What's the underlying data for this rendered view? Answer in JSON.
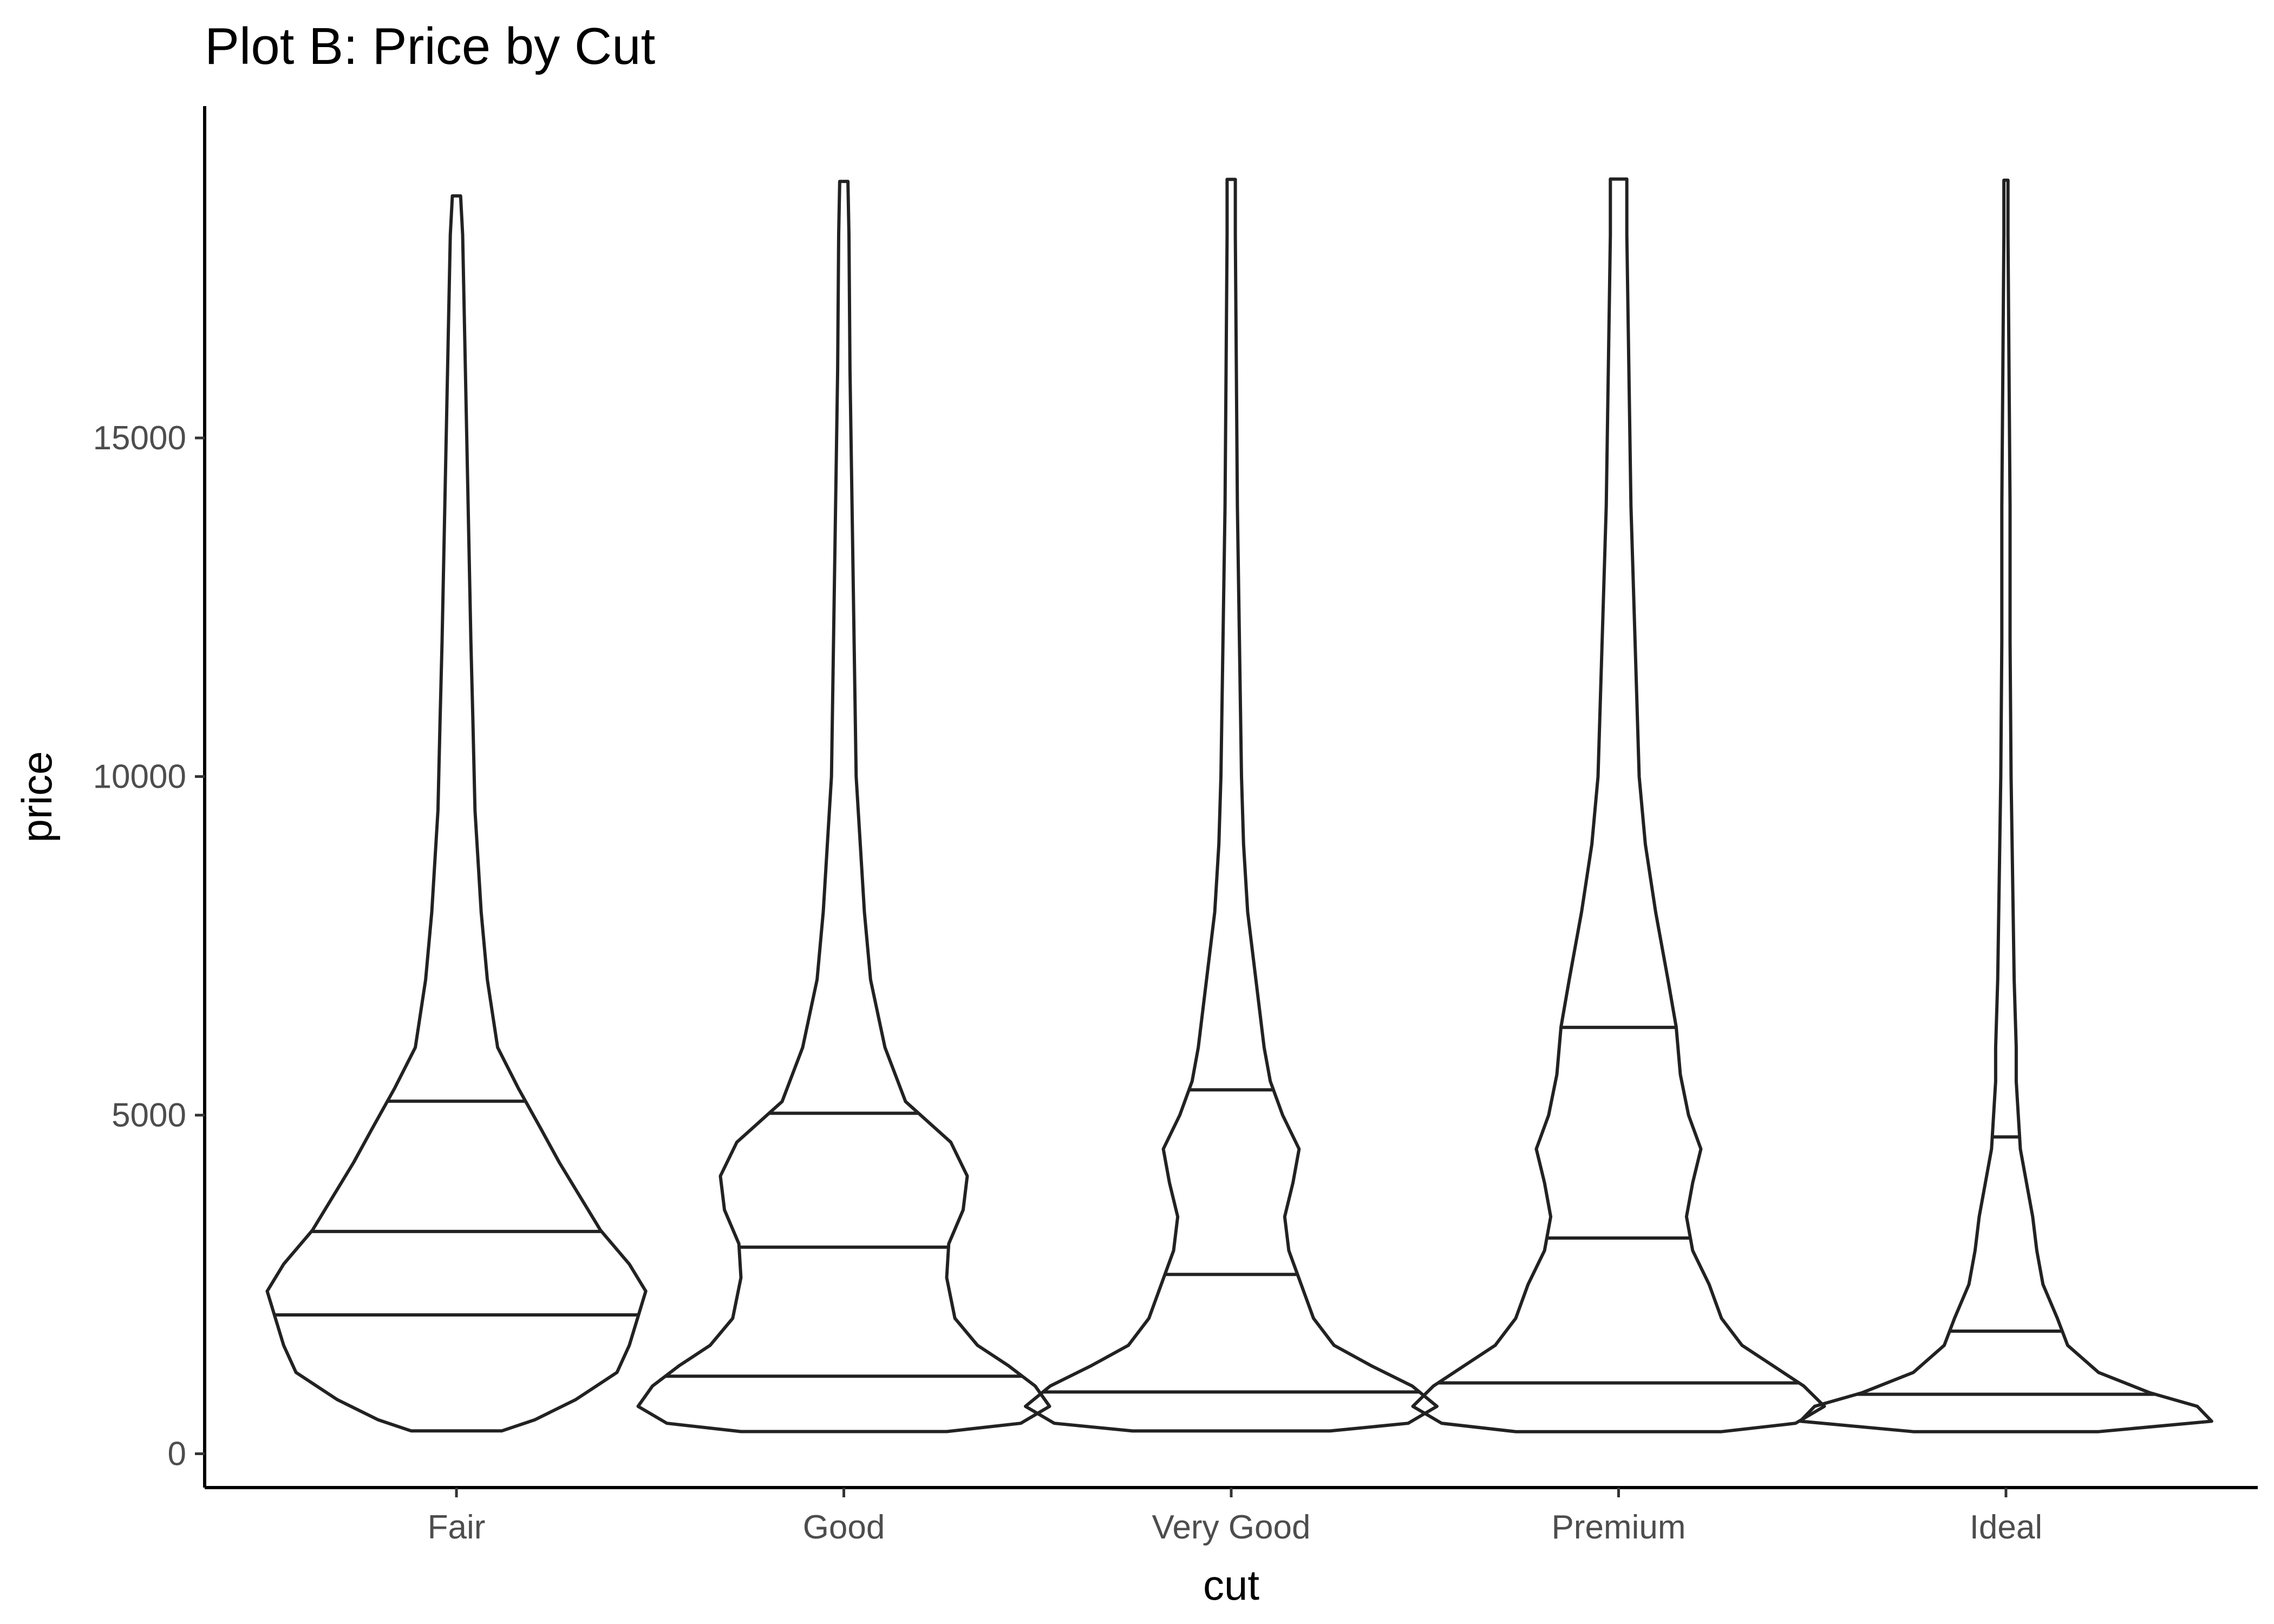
{
  "chart_data": {
    "type": "violin",
    "title": "Plot B: Price by Cut",
    "xlabel": "cut",
    "ylabel": "price",
    "ylim": [
      -500,
      19900
    ],
    "yticks": [
      0,
      5000,
      10000,
      15000
    ],
    "ytick_labels": [
      "0",
      "5000",
      "10000",
      "15000"
    ],
    "grid": false,
    "legend": "none",
    "categories": [
      "Fair",
      "Good",
      "Very Good",
      "Premium",
      "Ideal"
    ],
    "draw_quantiles": [
      0.25,
      0.5,
      0.75
    ],
    "series": [
      {
        "category": "Fair",
        "min": 337,
        "max": 18574,
        "quantiles": [
          2050,
          3282,
          5206
        ],
        "density": [
          [
            337,
            0.22
          ],
          [
            500,
            0.38
          ],
          [
            800,
            0.58
          ],
          [
            1200,
            0.78
          ],
          [
            1600,
            0.84
          ],
          [
            2000,
            0.88
          ],
          [
            2400,
            0.92
          ],
          [
            2800,
            0.84
          ],
          [
            3300,
            0.7
          ],
          [
            3800,
            0.6
          ],
          [
            4300,
            0.5
          ],
          [
            4800,
            0.41
          ],
          [
            5400,
            0.3
          ],
          [
            6000,
            0.2
          ],
          [
            7000,
            0.15
          ],
          [
            8000,
            0.12
          ],
          [
            9500,
            0.09
          ],
          [
            10800,
            0.08
          ],
          [
            12000,
            0.07
          ],
          [
            13500,
            0.06
          ],
          [
            15000,
            0.05
          ],
          [
            16500,
            0.04
          ],
          [
            18000,
            0.03
          ],
          [
            18574,
            0.02
          ]
        ]
      },
      {
        "category": "Good",
        "min": 327,
        "max": 18788,
        "quantiles": [
          1145,
          3050,
          5028
        ],
        "density": [
          [
            327,
            0.5
          ],
          [
            450,
            0.86
          ],
          [
            700,
            1.0
          ],
          [
            1000,
            0.93
          ],
          [
            1300,
            0.8
          ],
          [
            1600,
            0.65
          ],
          [
            2000,
            0.54
          ],
          [
            2600,
            0.5
          ],
          [
            3100,
            0.51
          ],
          [
            3600,
            0.58
          ],
          [
            4100,
            0.6
          ],
          [
            4600,
            0.52
          ],
          [
            5200,
            0.3
          ],
          [
            6000,
            0.2
          ],
          [
            7000,
            0.13
          ],
          [
            8000,
            0.1
          ],
          [
            9000,
            0.08
          ],
          [
            10000,
            0.06
          ],
          [
            12000,
            0.05
          ],
          [
            14000,
            0.04
          ],
          [
            16000,
            0.03
          ],
          [
            18000,
            0.025
          ],
          [
            18788,
            0.02
          ]
        ]
      },
      {
        "category": "Very Good",
        "min": 336,
        "max": 18818,
        "quantiles": [
          912,
          2648,
          5373
        ],
        "density": [
          [
            336,
            0.48
          ],
          [
            450,
            0.86
          ],
          [
            700,
            1.0
          ],
          [
            1000,
            0.88
          ],
          [
            1300,
            0.68
          ],
          [
            1600,
            0.5
          ],
          [
            2000,
            0.4
          ],
          [
            2500,
            0.34
          ],
          [
            3000,
            0.28
          ],
          [
            3500,
            0.26
          ],
          [
            4000,
            0.3
          ],
          [
            4500,
            0.33
          ],
          [
            5000,
            0.25
          ],
          [
            5500,
            0.19
          ],
          [
            6000,
            0.16
          ],
          [
            7000,
            0.12
          ],
          [
            8000,
            0.08
          ],
          [
            9000,
            0.06
          ],
          [
            10000,
            0.05
          ],
          [
            12000,
            0.04
          ],
          [
            14000,
            0.03
          ],
          [
            16000,
            0.025
          ],
          [
            18000,
            0.02
          ],
          [
            18818,
            0.02
          ]
        ]
      },
      {
        "category": "Premium",
        "min": 326,
        "max": 18823,
        "quantiles": [
          1046,
          3185,
          6296
        ],
        "density": [
          [
            326,
            0.5
          ],
          [
            450,
            0.86
          ],
          [
            700,
            1.0
          ],
          [
            1000,
            0.9
          ],
          [
            1300,
            0.75
          ],
          [
            1600,
            0.6
          ],
          [
            2000,
            0.5
          ],
          [
            2500,
            0.44
          ],
          [
            3000,
            0.36
          ],
          [
            3500,
            0.33
          ],
          [
            4000,
            0.36
          ],
          [
            4500,
            0.4
          ],
          [
            5000,
            0.34
          ],
          [
            5600,
            0.3
          ],
          [
            6300,
            0.28
          ],
          [
            7000,
            0.24
          ],
          [
            8000,
            0.18
          ],
          [
            9000,
            0.13
          ],
          [
            10000,
            0.1
          ],
          [
            12000,
            0.08
          ],
          [
            14000,
            0.06
          ],
          [
            16000,
            0.05
          ],
          [
            18000,
            0.04
          ],
          [
            18823,
            0.04
          ]
        ]
      },
      {
        "category": "Ideal",
        "min": 326,
        "max": 18806,
        "quantiles": [
          878,
          1810,
          4678
        ],
        "density": [
          [
            326,
            0.45
          ],
          [
            480,
            1.0
          ],
          [
            700,
            0.93
          ],
          [
            900,
            0.7
          ],
          [
            1200,
            0.45
          ],
          [
            1600,
            0.3
          ],
          [
            2000,
            0.25
          ],
          [
            2500,
            0.18
          ],
          [
            3000,
            0.15
          ],
          [
            3500,
            0.13
          ],
          [
            4000,
            0.1
          ],
          [
            4500,
            0.07
          ],
          [
            5000,
            0.06
          ],
          [
            5500,
            0.05
          ],
          [
            6000,
            0.05
          ],
          [
            7000,
            0.04
          ],
          [
            8000,
            0.035
          ],
          [
            9000,
            0.03
          ],
          [
            10000,
            0.025
          ],
          [
            12000,
            0.02
          ],
          [
            14000,
            0.02
          ],
          [
            16000,
            0.015
          ],
          [
            18000,
            0.01
          ],
          [
            18806,
            0.01
          ]
        ]
      }
    ]
  }
}
